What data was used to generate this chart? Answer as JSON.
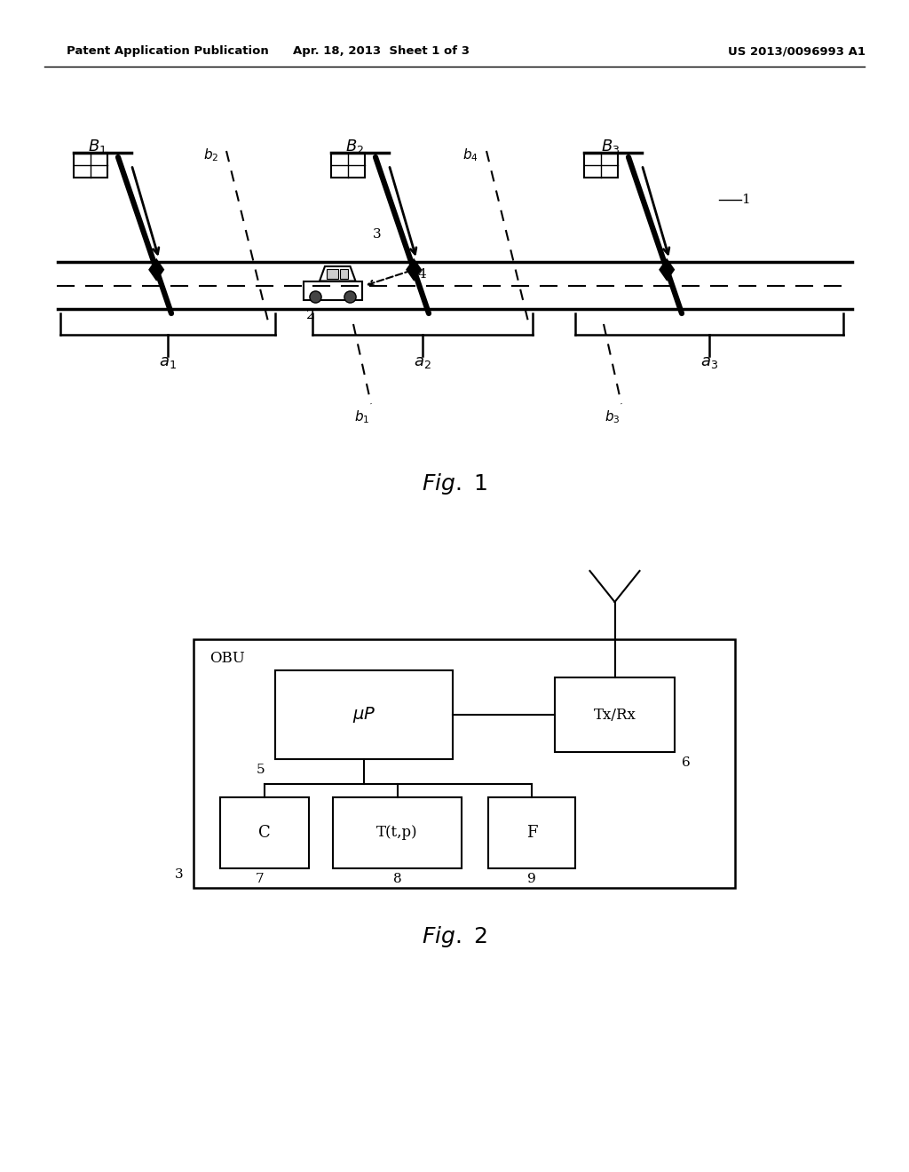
{
  "background_color": "#ffffff",
  "header_left": "Patent Application Publication",
  "header_center": "Apr. 18, 2013  Sheet 1 of 3",
  "header_right": "US 2013/0096993 A1",
  "fig1_caption": "Fig. 1",
  "fig2_caption": "Fig. 2"
}
